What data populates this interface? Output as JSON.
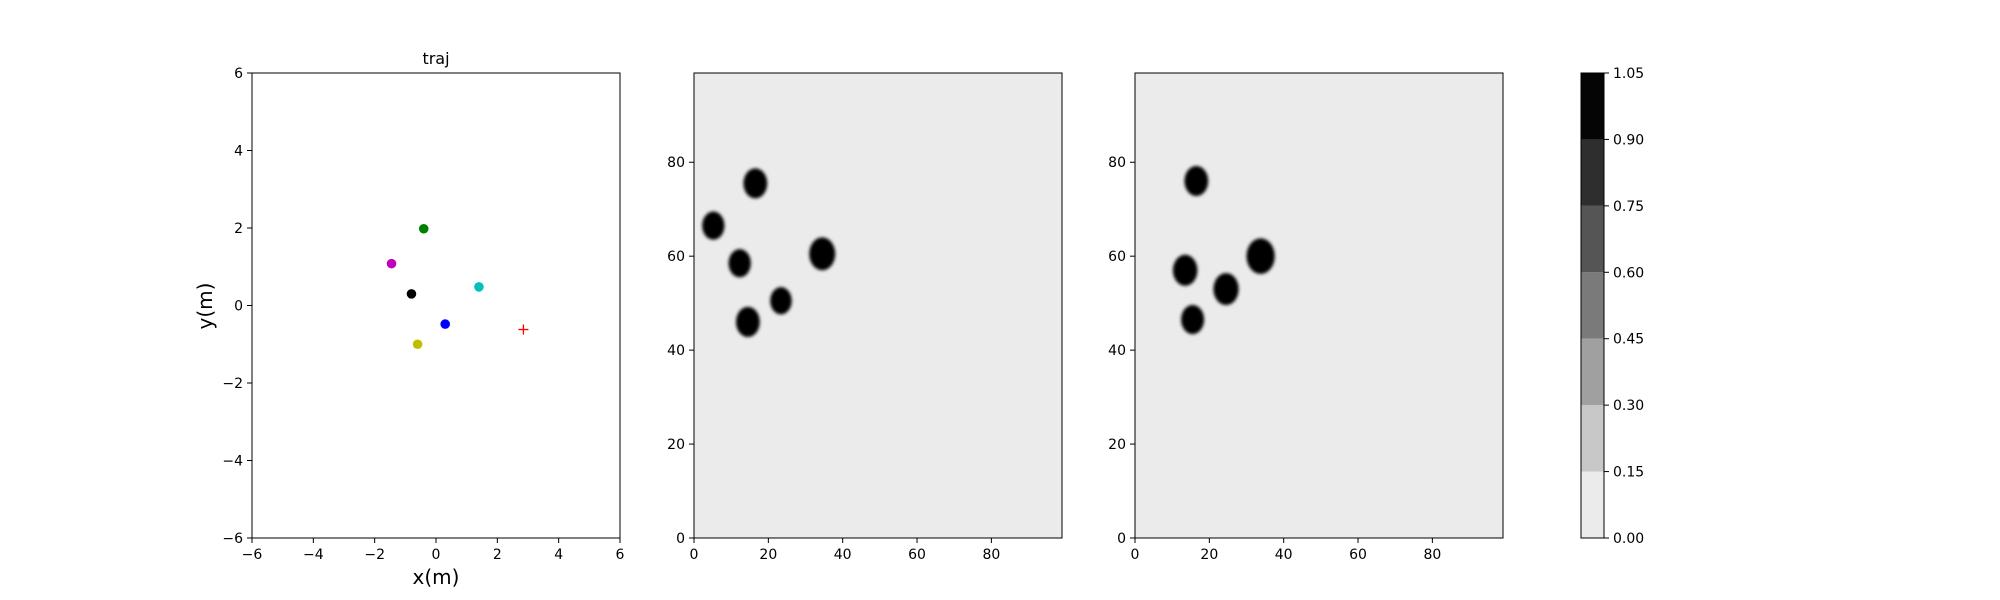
{
  "chart_data": [
    {
      "type": "scatter",
      "title": "traj",
      "xlabel": "x(m)",
      "ylabel": "y(m)",
      "xlim": [
        -6,
        6
      ],
      "ylim": [
        -6,
        6
      ],
      "xticks": [
        "−6",
        "−4",
        "−2",
        "0",
        "2",
        "4",
        "6"
      ],
      "yticks": [
        "−6",
        "−4",
        "−2",
        "0",
        "2",
        "4",
        "6"
      ],
      "grid": false,
      "points": [
        {
          "x": -0.4,
          "y": 1.98,
          "color": "#008000",
          "marker": "circle"
        },
        {
          "x": -1.45,
          "y": 1.08,
          "color": "#bf00bf",
          "marker": "circle"
        },
        {
          "x": 1.4,
          "y": 0.48,
          "color": "#00bfbf",
          "marker": "circle"
        },
        {
          "x": -0.8,
          "y": 0.3,
          "color": "#000000",
          "marker": "circle"
        },
        {
          "x": 0.3,
          "y": -0.48,
          "color": "#0000ff",
          "marker": "circle"
        },
        {
          "x": -0.6,
          "y": -1.0,
          "color": "#bfbf00",
          "marker": "circle"
        },
        {
          "x": 2.85,
          "y": -0.62,
          "color": "#ff0000",
          "marker": "plus"
        }
      ]
    },
    {
      "type": "heatmap",
      "title": "",
      "xlim": [
        0,
        99
      ],
      "ylim": [
        0,
        99
      ],
      "xticks": [
        "0",
        "20",
        "40",
        "60",
        "80"
      ],
      "yticks": [
        "0",
        "20",
        "40",
        "60",
        "80"
      ],
      "background_color": "#ebebeb",
      "blobs": [
        {
          "x": 16.5,
          "y": 75.5,
          "r": 3.2
        },
        {
          "x": 5.2,
          "y": 66.5,
          "r": 3.0
        },
        {
          "x": 34.5,
          "y": 60.5,
          "r": 3.5
        },
        {
          "x": 12.3,
          "y": 58.5,
          "r": 3.0
        },
        {
          "x": 23.4,
          "y": 50.5,
          "r": 2.9
        },
        {
          "x": 14.5,
          "y": 46.0,
          "r": 3.2
        }
      ]
    },
    {
      "type": "heatmap",
      "title": "",
      "xlim": [
        0,
        99
      ],
      "ylim": [
        0,
        99
      ],
      "xticks": [
        "0",
        "20",
        "40",
        "60",
        "80"
      ],
      "yticks": [
        "0",
        "20",
        "40",
        "60",
        "80"
      ],
      "background_color": "#ebebeb",
      "blobs": [
        {
          "x": 16.5,
          "y": 76.0,
          "r": 3.2
        },
        {
          "x": 33.8,
          "y": 60.0,
          "r": 3.8
        },
        {
          "x": 13.5,
          "y": 57.0,
          "r": 3.3
        },
        {
          "x": 24.5,
          "y": 53.0,
          "r": 3.4
        },
        {
          "x": 15.5,
          "y": 46.5,
          "r": 3.1
        }
      ]
    },
    {
      "type": "colorbar",
      "levels": [
        0.0,
        0.15,
        0.3,
        0.45,
        0.6,
        0.75,
        0.9,
        1.05
      ],
      "tick_labels": [
        "0.00",
        "0.15",
        "0.30",
        "0.45",
        "0.60",
        "0.75",
        "0.90",
        "1.05"
      ],
      "band_colors": [
        "#ebebeb",
        "#c8c8c8",
        "#a0a0a0",
        "#7a7a7a",
        "#555555",
        "#2e2e2e",
        "#050505"
      ]
    }
  ]
}
